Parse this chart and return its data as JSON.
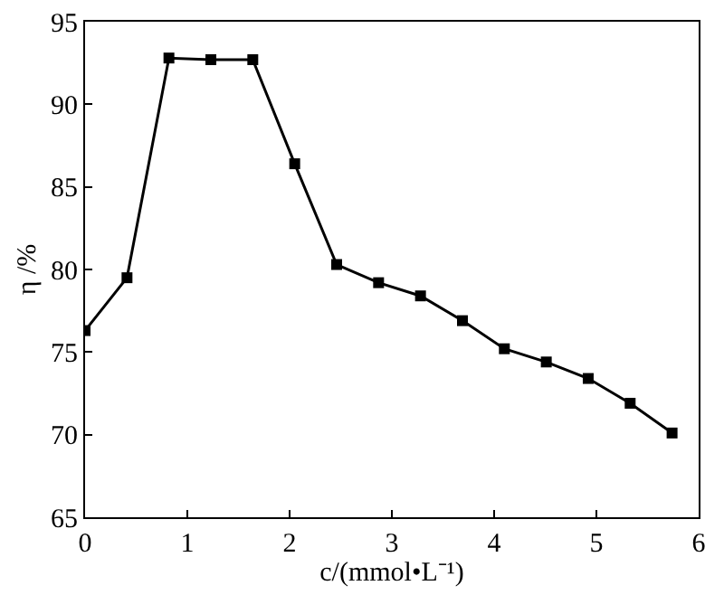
{
  "chart_data": {
    "type": "line",
    "xlabel": "c/(mmol•L⁻¹)",
    "ylabel": "η /%",
    "x": [
      0,
      0.41,
      0.82,
      1.23,
      1.64,
      2.05,
      2.46,
      2.87,
      3.28,
      3.69,
      4.1,
      4.51,
      4.92,
      5.33,
      5.74
    ],
    "series": [
      {
        "color": "#000000",
        "values": [
          76.3,
          79.5,
          92.8,
          92.7,
          92.7,
          86.4,
          80.3,
          79.2,
          78.4,
          76.9,
          75.2,
          74.4,
          73.4,
          71.9,
          70.1
        ]
      }
    ],
    "xlim": [
      0,
      6
    ],
    "xticks": [
      0,
      1,
      2,
      3,
      4,
      5,
      6
    ],
    "ylim": [
      65,
      95
    ],
    "yticks": [
      65,
      70,
      75,
      80,
      85,
      90,
      95
    ],
    "grid": false,
    "marker": "square",
    "line_style": "solid"
  }
}
